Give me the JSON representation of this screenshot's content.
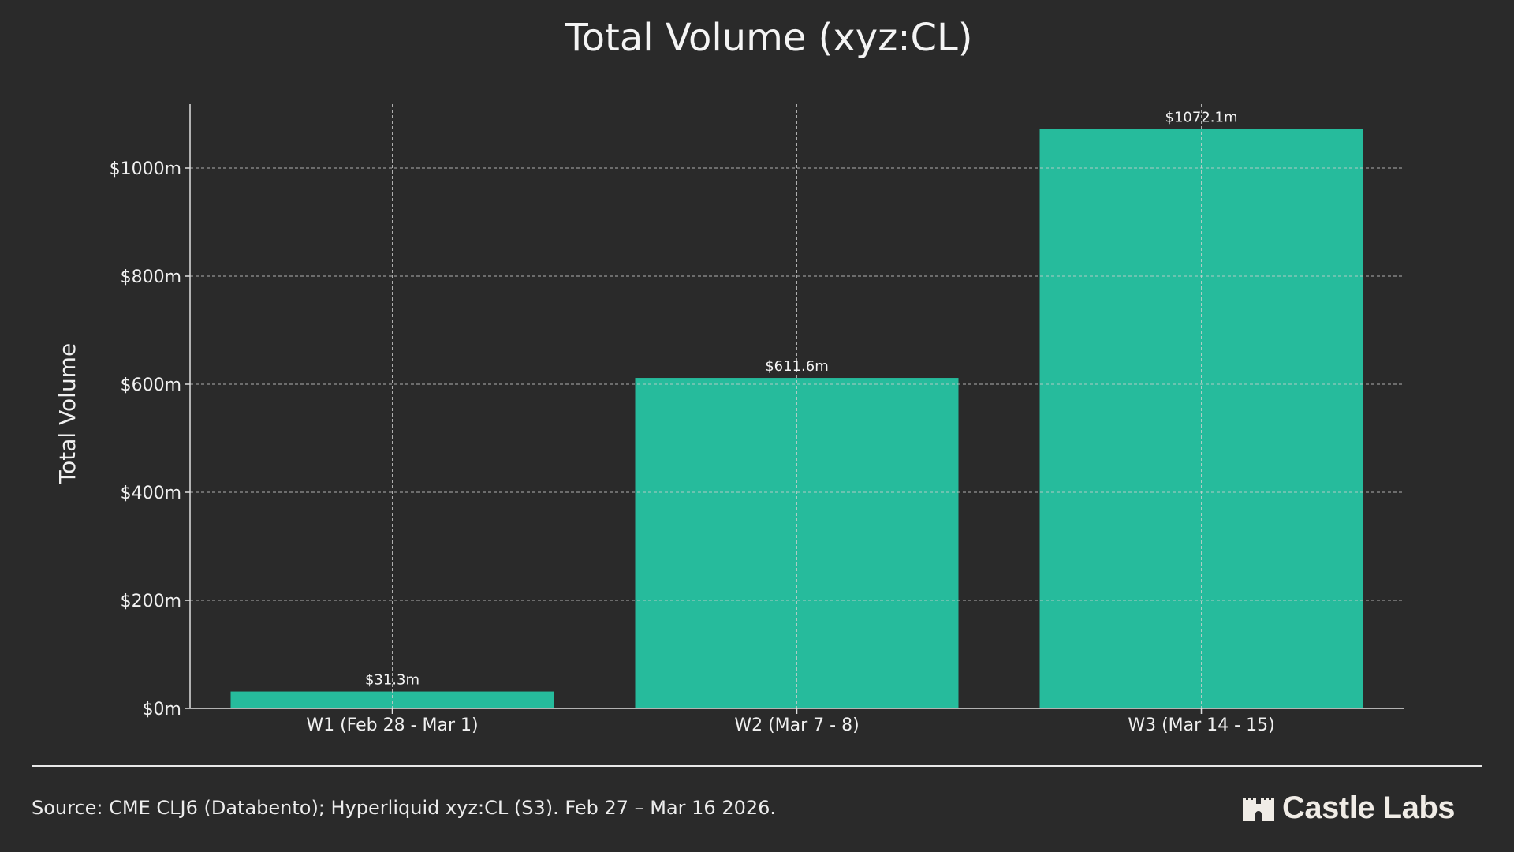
{
  "chart_data": {
    "type": "bar",
    "title": "Total Volume (xyz:CL)",
    "xlabel": "",
    "ylabel": "Total Volume",
    "categories": [
      "W1 (Feb 28 - Mar 1)",
      "W2 (Mar 7 - 8)",
      "W3 (Mar 14 - 15)"
    ],
    "values": [
      31.3,
      611.6,
      1072.1
    ],
    "data_labels": [
      "$31.3m",
      "$611.6m",
      "$1072.1m"
    ],
    "yticks": [
      0,
      200,
      400,
      600,
      800,
      1000
    ],
    "ytick_labels": [
      "$0m",
      "$200m",
      "$400m",
      "$600m",
      "$800m",
      "$1000m"
    ],
    "ylim": [
      0,
      1120
    ],
    "grid": true,
    "bar_color": "#26bb9c",
    "background": "#2a2a2a"
  },
  "footer": {
    "source": "Source: CME CLJ6 (Databento); Hyperliquid xyz:CL (S3). Feb 27 – Mar 16 2026.",
    "logo_text": "Castle Labs"
  }
}
